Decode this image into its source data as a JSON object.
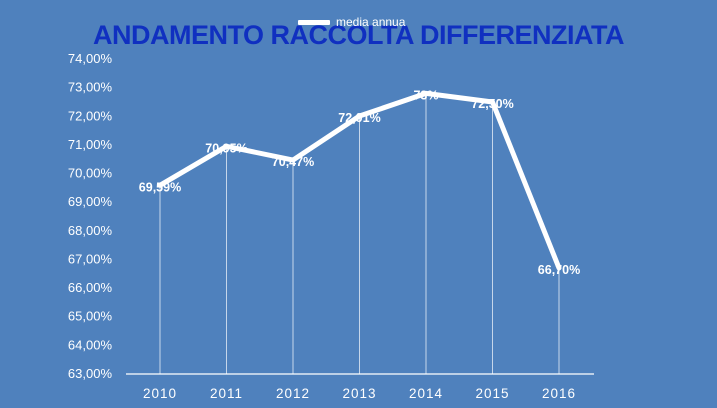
{
  "chart_data": {
    "type": "line",
    "title": "ANDAMENTO RACCOLTA DIFFERENZIATA",
    "categories": [
      "2010",
      "2011",
      "2012",
      "2013",
      "2014",
      "2015",
      "2016"
    ],
    "series": [
      {
        "name": "media annua",
        "values": [
          69.59,
          70.95,
          70.47,
          72.01,
          72.8,
          72.5,
          66.7
        ],
        "labels": [
          "69,59%",
          "70,95%",
          "70,47%",
          "72,01%",
          "73%",
          "72,50%",
          "66,70%"
        ]
      }
    ],
    "ylim": [
      63,
      74
    ],
    "yticks": [
      "63,00%",
      "64,00%",
      "65,00%",
      "66,00%",
      "67,00%",
      "68,00%",
      "69,00%",
      "70,00%",
      "71,00%",
      "72,00%",
      "73,00%",
      "74,00%"
    ],
    "xlabel": "",
    "ylabel": "",
    "legend_position": "top",
    "grid": false,
    "drop_lines": true,
    "colors": {
      "background": "#4f81bd",
      "line": "#ffffff",
      "title": "#1030c0",
      "text": "#ffffff"
    }
  }
}
